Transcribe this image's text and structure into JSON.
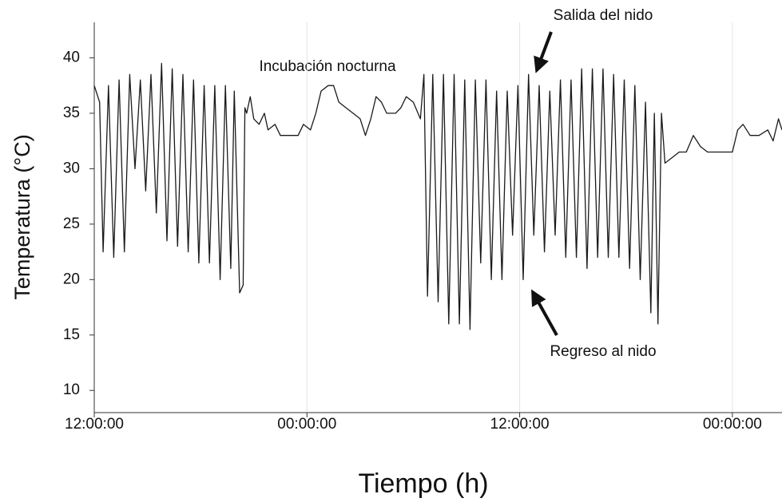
{
  "chart_data": {
    "type": "line",
    "x_label": "Tiempo (h)",
    "y_label": "Temperatura (°C)",
    "annotations": [
      "Incubación nocturna",
      "Salida del nido",
      "Regreso al nido"
    ],
    "color": "#1a1a1a",
    "grid": "x",
    "xlim": [
      0,
      38.8
    ],
    "xticks": [
      {
        "value": 0,
        "label": "12:00:00"
      },
      {
        "value": 12,
        "label": "00:00:00"
      },
      {
        "value": 24,
        "label": "12:00:00"
      },
      {
        "value": 36,
        "label": "00:00:00"
      }
    ],
    "ylim": [
      8,
      43.2
    ],
    "yticks": [
      10,
      15,
      20,
      25,
      30,
      35,
      40
    ],
    "x": [
      0,
      0.3,
      0.5,
      0.8,
      1.1,
      1.4,
      1.7,
      2.0,
      2.3,
      2.6,
      2.9,
      3.2,
      3.5,
      3.8,
      4.1,
      4.4,
      4.7,
      5.0,
      5.3,
      5.6,
      5.9,
      6.2,
      6.5,
      6.8,
      7.1,
      7.4,
      7.7,
      7.9,
      8.2,
      8.4,
      8.5,
      8.6,
      8.8,
      9.0,
      9.3,
      9.6,
      9.8,
      10.2,
      10.5,
      11.0,
      11.5,
      11.8,
      12.2,
      12.5,
      12.8,
      13.2,
      13.5,
      13.8,
      14.2,
      14.6,
      15.0,
      15.3,
      15.6,
      15.9,
      16.2,
      16.5,
      17.0,
      17.3,
      17.6,
      18.0,
      18.4,
      18.6,
      18.8,
      19.1,
      19.4,
      19.7,
      20.0,
      20.3,
      20.6,
      20.9,
      21.2,
      21.5,
      21.8,
      22.1,
      22.4,
      22.7,
      23.0,
      23.3,
      23.6,
      23.9,
      24.2,
      24.5,
      24.8,
      25.1,
      25.4,
      25.7,
      26.0,
      26.3,
      26.6,
      26.9,
      27.2,
      27.5,
      27.8,
      28.1,
      28.4,
      28.7,
      29.0,
      29.3,
      29.6,
      29.9,
      30.2,
      30.5,
      30.8,
      31.1,
      31.4,
      31.6,
      31.8,
      32.0,
      32.2,
      32.6,
      33.0,
      33.4,
      33.8,
      34.2,
      34.6,
      35.0,
      35.5,
      36.0,
      36.3,
      36.6,
      37.0,
      37.5,
      38.0,
      38.3,
      38.6,
      38.8
    ],
    "values": [
      37.5,
      36,
      22.5,
      37.5,
      22,
      38,
      22.5,
      38.5,
      30,
      38,
      28,
      38.5,
      26,
      39.5,
      23.5,
      39,
      23,
      38.5,
      22.5,
      38,
      21.5,
      37.5,
      21.5,
      37.5,
      20,
      37.5,
      21,
      37,
      18.8,
      19.5,
      35.5,
      35,
      36.5,
      34.5,
      34,
      35,
      33.5,
      34,
      33,
      33,
      33,
      34,
      33.5,
      35,
      37,
      37.5,
      37.5,
      36,
      35.5,
      35,
      34.5,
      33,
      34.5,
      36.5,
      36,
      35,
      35,
      35.5,
      36.5,
      36,
      34.5,
      38.5,
      18.5,
      38.5,
      18,
      38.5,
      16,
      38.5,
      16,
      38,
      15.5,
      38,
      21.5,
      38,
      20,
      37,
      20,
      37,
      24,
      37.5,
      20,
      38.5,
      24,
      37.5,
      22.5,
      37,
      24,
      38,
      22,
      38,
      22,
      39,
      21,
      39,
      22,
      39,
      22,
      38.5,
      22,
      38,
      21,
      37.5,
      20,
      36,
      17,
      35,
      16,
      35,
      30.5,
      31,
      31.5,
      31.5,
      33,
      32,
      31.5,
      31.5,
      31.5,
      31.5,
      33.5,
      34,
      33,
      33,
      33.5,
      32.5,
      34.5,
      33.5
    ]
  }
}
